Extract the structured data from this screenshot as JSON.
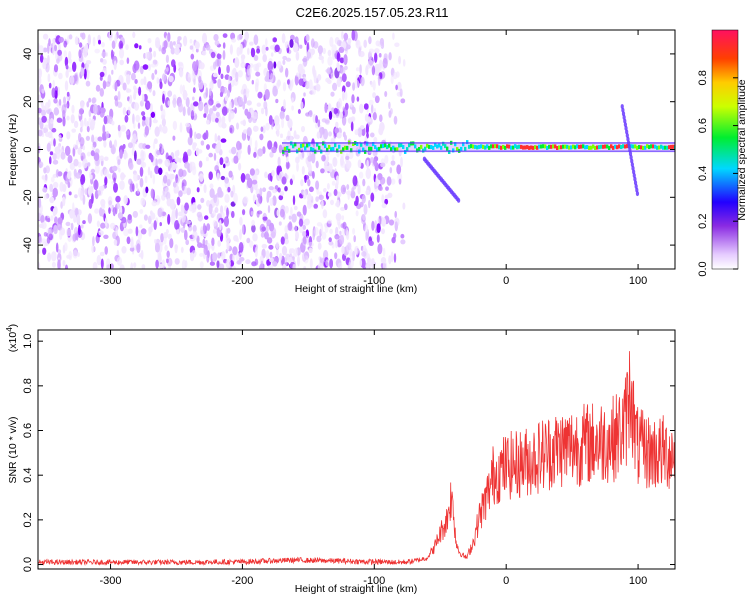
{
  "title": "C2E6.2025.157.05.23.R11",
  "chart_data": [
    {
      "type": "heatmap",
      "xlabel": "Height of straight line (km)",
      "ylabel": "Frequency (Hz)",
      "xlim": [
        -355,
        128
      ],
      "ylim": [
        -50,
        50
      ],
      "xticks": [
        -300,
        -200,
        -100,
        0,
        100
      ],
      "xtick_labels": [
        "-300",
        "-200",
        "-100",
        "0",
        "100"
      ],
      "yticks": [
        -40,
        -20,
        0,
        20,
        40
      ],
      "ytick_labels": [
        "-40",
        "-20",
        "0",
        "20",
        "40"
      ],
      "colorbar": {
        "label": "Normalized spectral amplitude",
        "range": [
          0,
          1
        ],
        "ticks": [
          0,
          0.2,
          0.4,
          0.6,
          0.8
        ],
        "tick_labels": [
          "0.0",
          "0.2",
          "0.4",
          "0.6",
          "0.8"
        ],
        "colormap": "rainbow (white-violet-blue-cyan-green-yellow-red)"
      },
      "features": [
        {
          "name": "noise",
          "x_range": [
            -355,
            -80
          ],
          "freq_range": [
            -50,
            48
          ]
        },
        {
          "name": "line",
          "x_range": [
            -170,
            128
          ],
          "freq": 1
        }
      ]
    },
    {
      "type": "line",
      "xlabel": "Height of straight line (km)",
      "ylabel": "SNR (10 * v/v)",
      "y_multiplier": "(x10",
      "y_multiplier_exp": "4",
      "y_multiplier_close": ")",
      "xlim": [
        -355,
        128
      ],
      "ylim": [
        -0.02,
        1.05
      ],
      "xticks": [
        -300,
        -200,
        -100,
        0,
        100
      ],
      "xtick_labels": [
        "-300",
        "-200",
        "-100",
        "0",
        "100"
      ],
      "yticks": [
        0,
        0.2,
        0.4,
        0.6,
        0.8,
        1.0
      ],
      "ytick_labels": [
        "0.0",
        "0.2",
        "0.4",
        "0.6",
        "0.8",
        "1.0"
      ],
      "series": [
        {
          "color": "#ee3333",
          "x": [
            -355,
            -300,
            -250,
            -200,
            -160,
            -120,
            -100,
            -80,
            -70,
            -60,
            -55,
            -50,
            -45,
            -42,
            -40,
            -38,
            -35,
            -30,
            -25,
            -20,
            -15,
            -12,
            -10,
            -5,
            0,
            10,
            20,
            30,
            40,
            50,
            60,
            70,
            80,
            85,
            90,
            95,
            97,
            100,
            110,
            120,
            128
          ],
          "y": [
            0.01,
            0.01,
            0.01,
            0.012,
            0.02,
            0.015,
            0.012,
            0.01,
            0.015,
            0.03,
            0.07,
            0.14,
            0.2,
            0.3,
            0.25,
            0.1,
            0.05,
            0.03,
            0.1,
            0.22,
            0.3,
            0.35,
            0.4,
            0.42,
            0.44,
            0.45,
            0.47,
            0.5,
            0.52,
            0.53,
            0.54,
            0.55,
            0.56,
            0.58,
            0.62,
            0.82,
            0.6,
            0.52,
            0.5,
            0.5,
            0.5
          ]
        }
      ]
    }
  ]
}
